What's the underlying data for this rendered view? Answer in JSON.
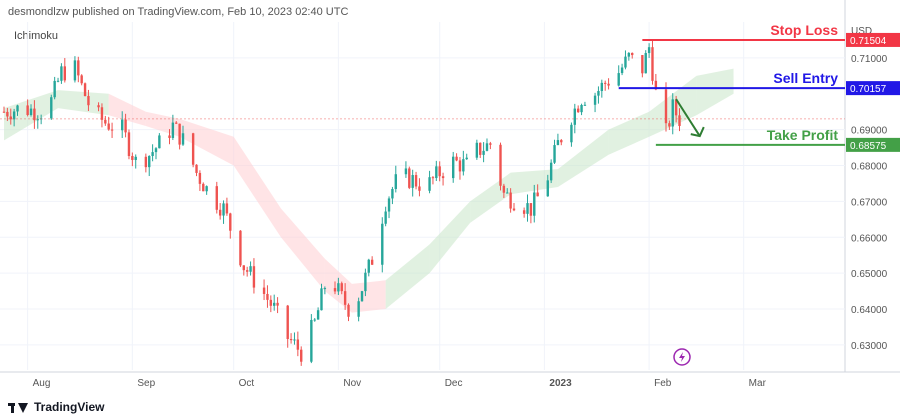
{
  "header": {
    "publisher_line": "desmondlzw published on TradingView.com, Feb 10, 2023 02:40 UTC"
  },
  "indicator_label": "Ichimoku",
  "currency_label": "USD",
  "footer": {
    "brand": "TradingView"
  },
  "colors": {
    "bull": "#26a69a",
    "bear": "#ef5350",
    "cloud_bull": "#c8e6c9",
    "cloud_bear": "#ffcdd2",
    "stop": "#f23645",
    "entry": "#2118e6",
    "profit": "#43a047",
    "arrow": "#2e7d32",
    "grid": "#f0f3fa",
    "axis_text": "#555555"
  },
  "icons": {
    "lightning": "lightning-icon"
  },
  "chart_data": {
    "type": "candlestick",
    "ylim": [
      0.623,
      0.72
    ],
    "y_ticks": [
      {
        "value": 0.63,
        "label": "0.63000"
      },
      {
        "value": 0.64,
        "label": "0.64000"
      },
      {
        "value": 0.65,
        "label": "0.65000"
      },
      {
        "value": 0.66,
        "label": "0.66000"
      },
      {
        "value": 0.67,
        "label": "0.67000"
      },
      {
        "value": 0.68,
        "label": "0.68000"
      },
      {
        "value": 0.69,
        "label": "0.69000"
      },
      {
        "value": 0.71,
        "label": "0.71000"
      }
    ],
    "x_ticks": [
      {
        "label": "Aug",
        "date": "2022-08-01",
        "bold": false
      },
      {
        "label": "Sep",
        "date": "2022-09-01",
        "bold": false
      },
      {
        "label": "Oct",
        "date": "2022-10-01",
        "bold": false
      },
      {
        "label": "Nov",
        "date": "2022-11-01",
        "bold": false
      },
      {
        "label": "Dec",
        "date": "2022-12-01",
        "bold": false
      },
      {
        "label": "2023",
        "date": "2023-01-01",
        "bold": true
      },
      {
        "label": "Feb",
        "date": "2023-02-01",
        "bold": false
      },
      {
        "label": "Mar",
        "date": "2023-03-01",
        "bold": false
      }
    ],
    "levels": [
      {
        "name": "Stop Loss",
        "value": 0.715,
        "price_label": "0.71504",
        "color": "#f23645",
        "start_date": "2023-01-30",
        "end_date": "2023-03-31"
      },
      {
        "name": "Sell Entry",
        "value": 0.70157,
        "price_label": "0.70157",
        "color": "#2118e6",
        "start_date": "2023-01-23",
        "end_date": "2023-03-31"
      },
      {
        "name": "Take Profit",
        "value": 0.68575,
        "price_label": "0.68575",
        "color": "#43a047",
        "start_date": "2023-02-03",
        "end_date": "2023-03-31"
      }
    ],
    "current_price": 0.693,
    "projection": {
      "from_date": "2023-02-09",
      "from_value": 0.6985,
      "to_date": "2023-02-16",
      "to_value": 0.6882
    },
    "price_path": [
      [
        "2022-07-25",
        0.695
      ],
      [
        "2022-07-30",
        0.696
      ],
      [
        "2022-08-05",
        0.695
      ],
      [
        "2022-08-08",
        0.698
      ],
      [
        "2022-08-11",
        0.706
      ],
      [
        "2022-08-15",
        0.707
      ],
      [
        "2022-08-17",
        0.702
      ],
      [
        "2022-08-20",
        0.695
      ],
      [
        "2022-08-24",
        0.692
      ],
      [
        "2022-08-29",
        0.69
      ],
      [
        "2022-09-02",
        0.681
      ],
      [
        "2022-09-06",
        0.683
      ],
      [
        "2022-09-09",
        0.686
      ],
      [
        "2022-09-13",
        0.691
      ],
      [
        "2022-09-16",
        0.687
      ],
      [
        "2022-09-20",
        0.678
      ],
      [
        "2022-09-24",
        0.672
      ],
      [
        "2022-09-28",
        0.668
      ],
      [
        "2022-10-01",
        0.66
      ],
      [
        "2022-10-04",
        0.652
      ],
      [
        "2022-10-08",
        0.647
      ],
      [
        "2022-10-13",
        0.64
      ],
      [
        "2022-10-17",
        0.632
      ],
      [
        "2022-10-21",
        0.628
      ],
      [
        "2022-10-25",
        0.636
      ],
      [
        "2022-10-29",
        0.65
      ],
      [
        "2022-11-02",
        0.643
      ],
      [
        "2022-11-05",
        0.639
      ],
      [
        "2022-11-08",
        0.646
      ],
      [
        "2022-11-11",
        0.654
      ],
      [
        "2022-11-15",
        0.67
      ],
      [
        "2022-11-19",
        0.677
      ],
      [
        "2022-11-23",
        0.676
      ],
      [
        "2022-11-27",
        0.674
      ],
      [
        "2022-12-01",
        0.678
      ],
      [
        "2022-12-05",
        0.681
      ],
      [
        "2022-12-09",
        0.68
      ],
      [
        "2022-12-12",
        0.684
      ],
      [
        "2022-12-16",
        0.686
      ],
      [
        "2022-12-20",
        0.672
      ],
      [
        "2022-12-24",
        0.67
      ],
      [
        "2022-12-28",
        0.668
      ],
      [
        "2023-01-01",
        0.674
      ],
      [
        "2023-01-05",
        0.686
      ],
      [
        "2023-01-09",
        0.694
      ],
      [
        "2023-01-12",
        0.699
      ],
      [
        "2023-01-16",
        0.7
      ],
      [
        "2023-01-19",
        0.703
      ],
      [
        "2023-01-23",
        0.706
      ],
      [
        "2023-01-26",
        0.71
      ],
      [
        "2023-01-30",
        0.707
      ],
      [
        "2023-02-01",
        0.713
      ],
      [
        "2023-02-03",
        0.7
      ],
      [
        "2023-02-06",
        0.689
      ],
      [
        "2023-02-08",
        0.696
      ],
      [
        "2023-02-10",
        0.693
      ]
    ],
    "cloud": [
      [
        "2022-07-25",
        0.687,
        0.696
      ],
      [
        "2022-08-10",
        0.696,
        0.701
      ],
      [
        "2022-08-25",
        0.694,
        0.7
      ],
      [
        "2022-09-05",
        0.691,
        0.695
      ],
      [
        "2022-09-15",
        0.688,
        0.693
      ],
      [
        "2022-10-01",
        0.68,
        0.688
      ],
      [
        "2022-10-15",
        0.66,
        0.668
      ],
      [
        "2022-10-28",
        0.645,
        0.654
      ],
      [
        "2022-11-05",
        0.639,
        0.647
      ],
      [
        "2022-11-15",
        0.64,
        0.648
      ],
      [
        "2022-11-28",
        0.65,
        0.658
      ],
      [
        "2022-12-10",
        0.664,
        0.67
      ],
      [
        "2022-12-22",
        0.672,
        0.678
      ],
      [
        "2023-01-05",
        0.674,
        0.679
      ],
      [
        "2023-01-20",
        0.683,
        0.69
      ],
      [
        "2023-02-01",
        0.688,
        0.695
      ],
      [
        "2023-02-15",
        0.694,
        0.705
      ],
      [
        "2023-02-26",
        0.7,
        0.707
      ]
    ]
  }
}
